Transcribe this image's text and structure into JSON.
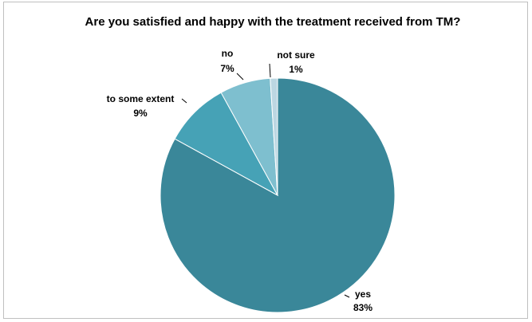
{
  "chart_data": {
    "type": "pie",
    "title": "Are you satisfied and happy with the treatment received from TM?",
    "categories": [
      "yes",
      "to some extent",
      "no",
      "not sure"
    ],
    "values": [
      83,
      9,
      7,
      1
    ],
    "labels": [
      "83%",
      "9%",
      "7%",
      "1%"
    ],
    "colors": [
      "#3a8799",
      "#46a2b6",
      "#7ebfcf",
      "#bcd7e2"
    ],
    "legend": "none"
  }
}
